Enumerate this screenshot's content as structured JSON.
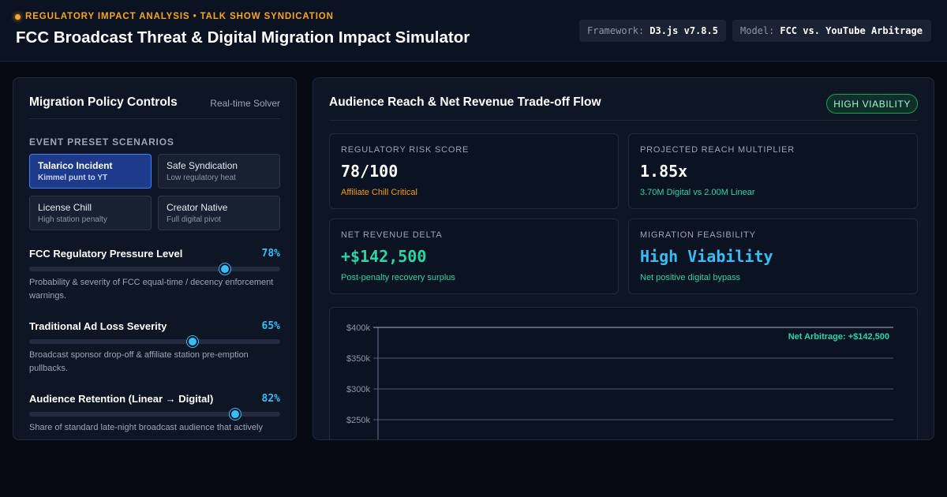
{
  "header": {
    "eyebrow": "REGULATORY IMPACT ANALYSIS • TALK SHOW SYNDICATION",
    "title": "FCC Broadcast Threat & Digital Migration Impact Simulator",
    "framework_label": "Framework:",
    "framework_value": "D3.js v7.8.5",
    "model_label": "Model:",
    "model_value": "FCC vs. YouTube Arbitrage"
  },
  "controls": {
    "title": "Migration Policy Controls",
    "badge": "Real-time Solver",
    "presets_label": "EVENT PRESET SCENARIOS",
    "presets": [
      {
        "name": "Talarico Incident",
        "sub": "Kimmel punt to YT",
        "active": true
      },
      {
        "name": "Safe Syndication",
        "sub": "Low regulatory heat",
        "active": false
      },
      {
        "name": "License Chill",
        "sub": "High station penalty",
        "active": false
      },
      {
        "name": "Creator Native",
        "sub": "Full digital pivot",
        "active": false
      }
    ],
    "sliders": [
      {
        "name": "FCC Regulatory Pressure Level",
        "value": 78,
        "display": "78%",
        "desc": "Probability & severity of FCC equal-time / decency enforcement warnings."
      },
      {
        "name": "Traditional Ad Loss Severity",
        "value": 65,
        "display": "65%",
        "desc": "Broadcast sponsor drop-off & affiliate station pre-emption pullbacks."
      },
      {
        "name": "Audience Retention (Linear → Digital)",
        "value": 82,
        "display": "82%",
        "desc": "Share of standard late-night broadcast audience that actively"
      }
    ]
  },
  "results": {
    "title": "Audience Reach & Net Revenue Trade-off Flow",
    "badge": "HIGH VIABILITY",
    "metrics": [
      {
        "label": "REGULATORY RISK SCORE",
        "value": "78/100",
        "sub": "Affiliate Chill Critical",
        "value_color": "#ffffff",
        "sub_color": "#f59e0b"
      },
      {
        "label": "PROJECTED REACH MULTIPLIER",
        "value": "1.85x",
        "sub": "3.70M Digital vs 2.00M Linear",
        "value_color": "#ffffff",
        "sub_color": "#2dd4a4"
      },
      {
        "label": "NET REVENUE DELTA",
        "value": "+$142,500",
        "sub": "Post-penalty recovery surplus",
        "value_color": "#2dd4a4",
        "sub_color": "#2dd4a4"
      },
      {
        "label": "MIGRATION FEASIBILITY",
        "value": "High Viability",
        "sub": "Net positive digital bypass",
        "value_color": "#38bdf8",
        "sub_color": "#2dd4a4"
      }
    ]
  },
  "chart_data": {
    "type": "line",
    "title": "",
    "xlabel": "",
    "ylabel": "",
    "y_ticks": [
      "$400k",
      "$350k",
      "$300k",
      "$250k"
    ],
    "y_tick_values": [
      400000,
      350000,
      300000,
      250000
    ],
    "ylim_visible": [
      250000,
      400000
    ],
    "grid": true,
    "annotation": "Net Arbitrage: +$142,500",
    "annotation_color": "#2dd4a4",
    "series": []
  }
}
